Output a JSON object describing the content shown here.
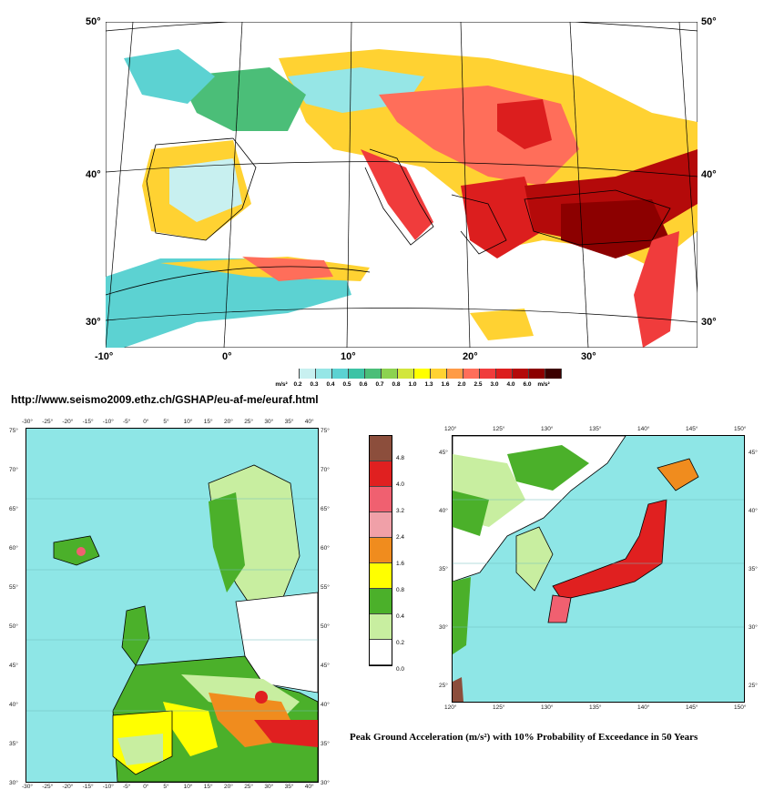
{
  "url_text": "http://www.seismo2009.ethz.ch/GSHAP/eu-af-me/euraf.html",
  "caption": "Peak Ground Acceleration (m/s²) with 10% Probability of Exceedance in 50 Years",
  "top_map": {
    "lat_labels": [
      "50°",
      "40°",
      "30°"
    ],
    "lon_labels": [
      "-10°",
      "0°",
      "10°",
      "20°",
      "30°"
    ],
    "legend": {
      "unit": "m/s²",
      "values": [
        "0.2",
        "0.3",
        "0.4",
        "0.5",
        "0.6",
        "0.7",
        "0.8",
        "1.0",
        "1.3",
        "1.6",
        "2.0",
        "2.5",
        "3.0",
        "4.0",
        "6.0"
      ],
      "colors": [
        "#ffffff",
        "#c8f0f0",
        "#96e6e6",
        "#5cd2d2",
        "#3cc3a5",
        "#4bbe78",
        "#8cd250",
        "#d2e63c",
        "#ffff00",
        "#ffd232",
        "#ff9b46",
        "#ff6e5a",
        "#f03c3c",
        "#dc1e1e",
        "#b40a0a",
        "#8c0000",
        "#3c0000"
      ]
    }
  },
  "europe_map": {
    "lon_labels": [
      "-30°",
      "-25°",
      "-20°",
      "-15°",
      "-10°",
      "-5°",
      "0°",
      "5°",
      "10°",
      "15°",
      "20°",
      "25°",
      "30°",
      "35°",
      "40°"
    ],
    "lat_labels": [
      "75°",
      "70°",
      "65°",
      "60°",
      "55°",
      "50°",
      "45°",
      "40°",
      "35°",
      "30°"
    ]
  },
  "mid_legend": {
    "values": [
      "4.8",
      "4.0",
      "3.2",
      "2.4",
      "1.6",
      "0.8",
      "0.4",
      "0.2",
      "0.0"
    ],
    "colors": [
      "#8c4e3c",
      "#e02020",
      "#f06070",
      "#f0a0a8",
      "#f08c1e",
      "#ffff00",
      "#4bb02a",
      "#c8eea0",
      "#ffffff"
    ]
  },
  "japan_map": {
    "lon_labels": [
      "120°",
      "125°",
      "130°",
      "135°",
      "140°",
      "145°",
      "150°"
    ],
    "lat_labels": [
      "45°",
      "40°",
      "35°",
      "30°",
      "25°"
    ]
  }
}
